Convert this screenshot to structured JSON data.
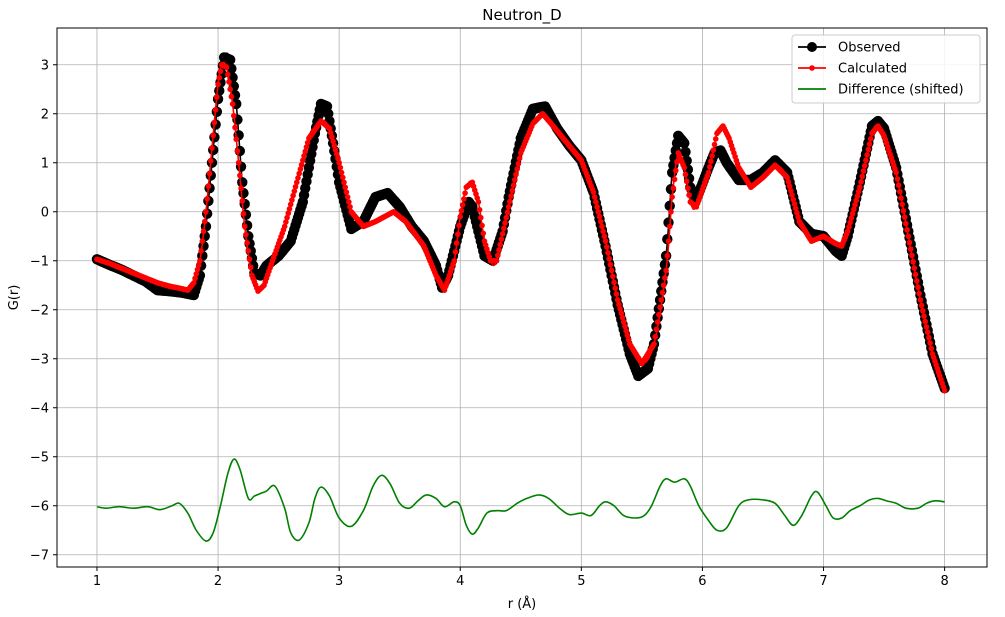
{
  "chart_data": {
    "type": "line",
    "title": "Neutron_D",
    "xlabel": "r (Å)",
    "ylabel": "G(r)",
    "xlim": [
      0.67,
      8.35
    ],
    "ylim": [
      -7.25,
      3.75
    ],
    "xticks": [
      1,
      2,
      3,
      4,
      5,
      6,
      7,
      8
    ],
    "yticks": [
      -7,
      -6,
      -5,
      -4,
      -3,
      -2,
      -1,
      0,
      1,
      2,
      3
    ],
    "grid": true,
    "legend_position": "top-right",
    "series": [
      {
        "name": "Observed",
        "color": "#000000",
        "marker": "circle",
        "points": [
          [
            1.0,
            -0.97
          ],
          [
            1.1,
            -1.08
          ],
          [
            1.2,
            -1.18
          ],
          [
            1.3,
            -1.3
          ],
          [
            1.4,
            -1.42
          ],
          [
            1.5,
            -1.6
          ],
          [
            1.6,
            -1.62
          ],
          [
            1.7,
            -1.65
          ],
          [
            1.8,
            -1.7
          ],
          [
            1.85,
            -1.3
          ],
          [
            1.9,
            -0.3
          ],
          [
            1.95,
            1.0
          ],
          [
            2.0,
            2.3
          ],
          [
            2.05,
            3.15
          ],
          [
            2.1,
            3.1
          ],
          [
            2.15,
            2.2
          ],
          [
            2.2,
            0.6
          ],
          [
            2.25,
            -0.5
          ],
          [
            2.3,
            -1.25
          ],
          [
            2.35,
            -1.3
          ],
          [
            2.4,
            -1.1
          ],
          [
            2.5,
            -0.9
          ],
          [
            2.6,
            -0.6
          ],
          [
            2.7,
            0.2
          ],
          [
            2.8,
            1.6
          ],
          [
            2.85,
            2.2
          ],
          [
            2.9,
            2.15
          ],
          [
            2.95,
            1.4
          ],
          [
            3.0,
            0.6
          ],
          [
            3.1,
            -0.35
          ],
          [
            3.2,
            -0.2
          ],
          [
            3.3,
            0.3
          ],
          [
            3.4,
            0.38
          ],
          [
            3.5,
            0.1
          ],
          [
            3.6,
            -0.3
          ],
          [
            3.7,
            -0.6
          ],
          [
            3.8,
            -1.1
          ],
          [
            3.85,
            -1.55
          ],
          [
            3.9,
            -1.3
          ],
          [
            4.0,
            -0.3
          ],
          [
            4.07,
            0.2
          ],
          [
            4.1,
            0.1
          ],
          [
            4.2,
            -0.9
          ],
          [
            4.27,
            -1.0
          ],
          [
            4.35,
            -0.4
          ],
          [
            4.4,
            0.3
          ],
          [
            4.5,
            1.5
          ],
          [
            4.6,
            2.1
          ],
          [
            4.7,
            2.15
          ],
          [
            4.8,
            1.7
          ],
          [
            4.9,
            1.35
          ],
          [
            5.0,
            1.05
          ],
          [
            5.1,
            0.4
          ],
          [
            5.2,
            -0.7
          ],
          [
            5.3,
            -1.9
          ],
          [
            5.4,
            -2.9
          ],
          [
            5.47,
            -3.35
          ],
          [
            5.55,
            -3.2
          ],
          [
            5.6,
            -2.7
          ],
          [
            5.7,
            -0.9
          ],
          [
            5.75,
            0.8
          ],
          [
            5.8,
            1.55
          ],
          [
            5.85,
            1.4
          ],
          [
            5.9,
            0.5
          ],
          [
            5.95,
            0.25
          ],
          [
            6.05,
            0.9
          ],
          [
            6.1,
            1.2
          ],
          [
            6.15,
            1.25
          ],
          [
            6.2,
            1.0
          ],
          [
            6.3,
            0.65
          ],
          [
            6.4,
            0.65
          ],
          [
            6.5,
            0.8
          ],
          [
            6.6,
            1.05
          ],
          [
            6.7,
            0.8
          ],
          [
            6.8,
            -0.2
          ],
          [
            6.9,
            -0.45
          ],
          [
            7.0,
            -0.5
          ],
          [
            7.1,
            -0.8
          ],
          [
            7.15,
            -0.9
          ],
          [
            7.2,
            -0.5
          ],
          [
            7.3,
            0.6
          ],
          [
            7.4,
            1.75
          ],
          [
            7.45,
            1.85
          ],
          [
            7.5,
            1.7
          ],
          [
            7.6,
            0.9
          ],
          [
            7.7,
            -0.4
          ],
          [
            7.8,
            -1.7
          ],
          [
            7.9,
            -2.9
          ],
          [
            8.0,
            -3.6
          ]
        ]
      },
      {
        "name": "Calculated",
        "color": "#ff0000",
        "marker": "small-circle",
        "points": [
          [
            1.0,
            -0.97
          ],
          [
            1.1,
            -1.05
          ],
          [
            1.2,
            -1.15
          ],
          [
            1.3,
            -1.25
          ],
          [
            1.4,
            -1.35
          ],
          [
            1.5,
            -1.45
          ],
          [
            1.6,
            -1.52
          ],
          [
            1.7,
            -1.57
          ],
          [
            1.75,
            -1.6
          ],
          [
            1.8,
            -1.45
          ],
          [
            1.85,
            -1.0
          ],
          [
            1.9,
            0.0
          ],
          [
            1.95,
            1.3
          ],
          [
            2.0,
            2.6
          ],
          [
            2.03,
            3.0
          ],
          [
            2.07,
            2.95
          ],
          [
            2.12,
            2.2
          ],
          [
            2.17,
            1.0
          ],
          [
            2.22,
            -0.3
          ],
          [
            2.28,
            -1.3
          ],
          [
            2.33,
            -1.62
          ],
          [
            2.38,
            -1.5
          ],
          [
            2.45,
            -1.0
          ],
          [
            2.55,
            -0.3
          ],
          [
            2.65,
            0.6
          ],
          [
            2.75,
            1.5
          ],
          [
            2.85,
            1.85
          ],
          [
            2.92,
            1.7
          ],
          [
            3.0,
            1.0
          ],
          [
            3.1,
            0.0
          ],
          [
            3.2,
            -0.3
          ],
          [
            3.3,
            -0.2
          ],
          [
            3.45,
            0.0
          ],
          [
            3.55,
            -0.2
          ],
          [
            3.7,
            -0.7
          ],
          [
            3.8,
            -1.3
          ],
          [
            3.87,
            -1.6
          ],
          [
            3.95,
            -1.0
          ],
          [
            4.0,
            -0.1
          ],
          [
            4.05,
            0.5
          ],
          [
            4.1,
            0.6
          ],
          [
            4.15,
            0.2
          ],
          [
            4.2,
            -0.6
          ],
          [
            4.25,
            -1.0
          ],
          [
            4.3,
            -1.0
          ],
          [
            4.4,
            0.1
          ],
          [
            4.5,
            1.2
          ],
          [
            4.6,
            1.8
          ],
          [
            4.68,
            2.0
          ],
          [
            4.75,
            1.8
          ],
          [
            4.85,
            1.5
          ],
          [
            5.0,
            1.05
          ],
          [
            5.1,
            0.4
          ],
          [
            5.2,
            -0.6
          ],
          [
            5.3,
            -1.8
          ],
          [
            5.4,
            -2.7
          ],
          [
            5.5,
            -3.1
          ],
          [
            5.6,
            -2.7
          ],
          [
            5.7,
            -1.2
          ],
          [
            5.75,
            0.3
          ],
          [
            5.8,
            1.2
          ],
          [
            5.85,
            0.9
          ],
          [
            5.9,
            0.2
          ],
          [
            5.95,
            0.1
          ],
          [
            6.05,
            0.8
          ],
          [
            6.12,
            1.6
          ],
          [
            6.17,
            1.75
          ],
          [
            6.22,
            1.5
          ],
          [
            6.3,
            0.9
          ],
          [
            6.4,
            0.5
          ],
          [
            6.5,
            0.7
          ],
          [
            6.6,
            0.95
          ],
          [
            6.7,
            0.7
          ],
          [
            6.8,
            -0.2
          ],
          [
            6.9,
            -0.6
          ],
          [
            7.0,
            -0.5
          ],
          [
            7.1,
            -0.65
          ],
          [
            7.15,
            -0.7
          ],
          [
            7.2,
            -0.4
          ],
          [
            7.3,
            0.5
          ],
          [
            7.4,
            1.6
          ],
          [
            7.45,
            1.75
          ],
          [
            7.5,
            1.55
          ],
          [
            7.6,
            0.8
          ],
          [
            7.7,
            -0.5
          ],
          [
            7.8,
            -1.8
          ],
          [
            7.9,
            -2.9
          ],
          [
            8.0,
            -3.65
          ]
        ]
      },
      {
        "name": "Difference (shifted)",
        "color": "#008000",
        "marker": "none",
        "points": [
          [
            1.0,
            -6.02
          ],
          [
            1.08,
            -6.05
          ],
          [
            1.18,
            -6.02
          ],
          [
            1.3,
            -6.05
          ],
          [
            1.42,
            -6.02
          ],
          [
            1.52,
            -6.08
          ],
          [
            1.62,
            -6.0
          ],
          [
            1.68,
            -5.95
          ],
          [
            1.75,
            -6.15
          ],
          [
            1.82,
            -6.5
          ],
          [
            1.9,
            -6.72
          ],
          [
            1.96,
            -6.55
          ],
          [
            2.02,
            -6.0
          ],
          [
            2.08,
            -5.35
          ],
          [
            2.13,
            -5.05
          ],
          [
            2.18,
            -5.25
          ],
          [
            2.25,
            -5.85
          ],
          [
            2.3,
            -5.8
          ],
          [
            2.35,
            -5.75
          ],
          [
            2.4,
            -5.7
          ],
          [
            2.47,
            -5.6
          ],
          [
            2.55,
            -6.05
          ],
          [
            2.6,
            -6.55
          ],
          [
            2.67,
            -6.7
          ],
          [
            2.75,
            -6.35
          ],
          [
            2.8,
            -5.85
          ],
          [
            2.85,
            -5.62
          ],
          [
            2.92,
            -5.8
          ],
          [
            3.0,
            -6.25
          ],
          [
            3.1,
            -6.42
          ],
          [
            3.2,
            -6.1
          ],
          [
            3.28,
            -5.6
          ],
          [
            3.35,
            -5.38
          ],
          [
            3.42,
            -5.55
          ],
          [
            3.5,
            -5.95
          ],
          [
            3.58,
            -6.05
          ],
          [
            3.65,
            -5.9
          ],
          [
            3.72,
            -5.78
          ],
          [
            3.8,
            -5.85
          ],
          [
            3.87,
            -6.02
          ],
          [
            3.95,
            -5.92
          ],
          [
            4.0,
            -6.0
          ],
          [
            4.05,
            -6.4
          ],
          [
            4.1,
            -6.58
          ],
          [
            4.15,
            -6.45
          ],
          [
            4.22,
            -6.15
          ],
          [
            4.3,
            -6.1
          ],
          [
            4.38,
            -6.1
          ],
          [
            4.47,
            -5.95
          ],
          [
            4.55,
            -5.85
          ],
          [
            4.65,
            -5.78
          ],
          [
            4.73,
            -5.85
          ],
          [
            4.82,
            -6.05
          ],
          [
            4.9,
            -6.18
          ],
          [
            5.0,
            -6.15
          ],
          [
            5.08,
            -6.2
          ],
          [
            5.15,
            -6.0
          ],
          [
            5.2,
            -5.92
          ],
          [
            5.27,
            -6.0
          ],
          [
            5.35,
            -6.2
          ],
          [
            5.45,
            -6.25
          ],
          [
            5.52,
            -6.2
          ],
          [
            5.58,
            -6.0
          ],
          [
            5.65,
            -5.6
          ],
          [
            5.7,
            -5.45
          ],
          [
            5.77,
            -5.52
          ],
          [
            5.85,
            -5.45
          ],
          [
            5.9,
            -5.6
          ],
          [
            5.97,
            -6.0
          ],
          [
            6.05,
            -6.3
          ],
          [
            6.12,
            -6.5
          ],
          [
            6.2,
            -6.45
          ],
          [
            6.3,
            -6.0
          ],
          [
            6.38,
            -5.88
          ],
          [
            6.5,
            -5.88
          ],
          [
            6.6,
            -5.95
          ],
          [
            6.68,
            -6.2
          ],
          [
            6.75,
            -6.4
          ],
          [
            6.82,
            -6.2
          ],
          [
            6.9,
            -5.8
          ],
          [
            6.95,
            -5.72
          ],
          [
            7.02,
            -6.0
          ],
          [
            7.08,
            -6.25
          ],
          [
            7.15,
            -6.25
          ],
          [
            7.22,
            -6.1
          ],
          [
            7.3,
            -6.0
          ],
          [
            7.38,
            -5.88
          ],
          [
            7.45,
            -5.85
          ],
          [
            7.52,
            -5.9
          ],
          [
            7.6,
            -5.95
          ],
          [
            7.68,
            -6.05
          ],
          [
            7.78,
            -6.05
          ],
          [
            7.85,
            -5.95
          ],
          [
            7.92,
            -5.9
          ],
          [
            8.0,
            -5.92
          ]
        ]
      }
    ]
  }
}
